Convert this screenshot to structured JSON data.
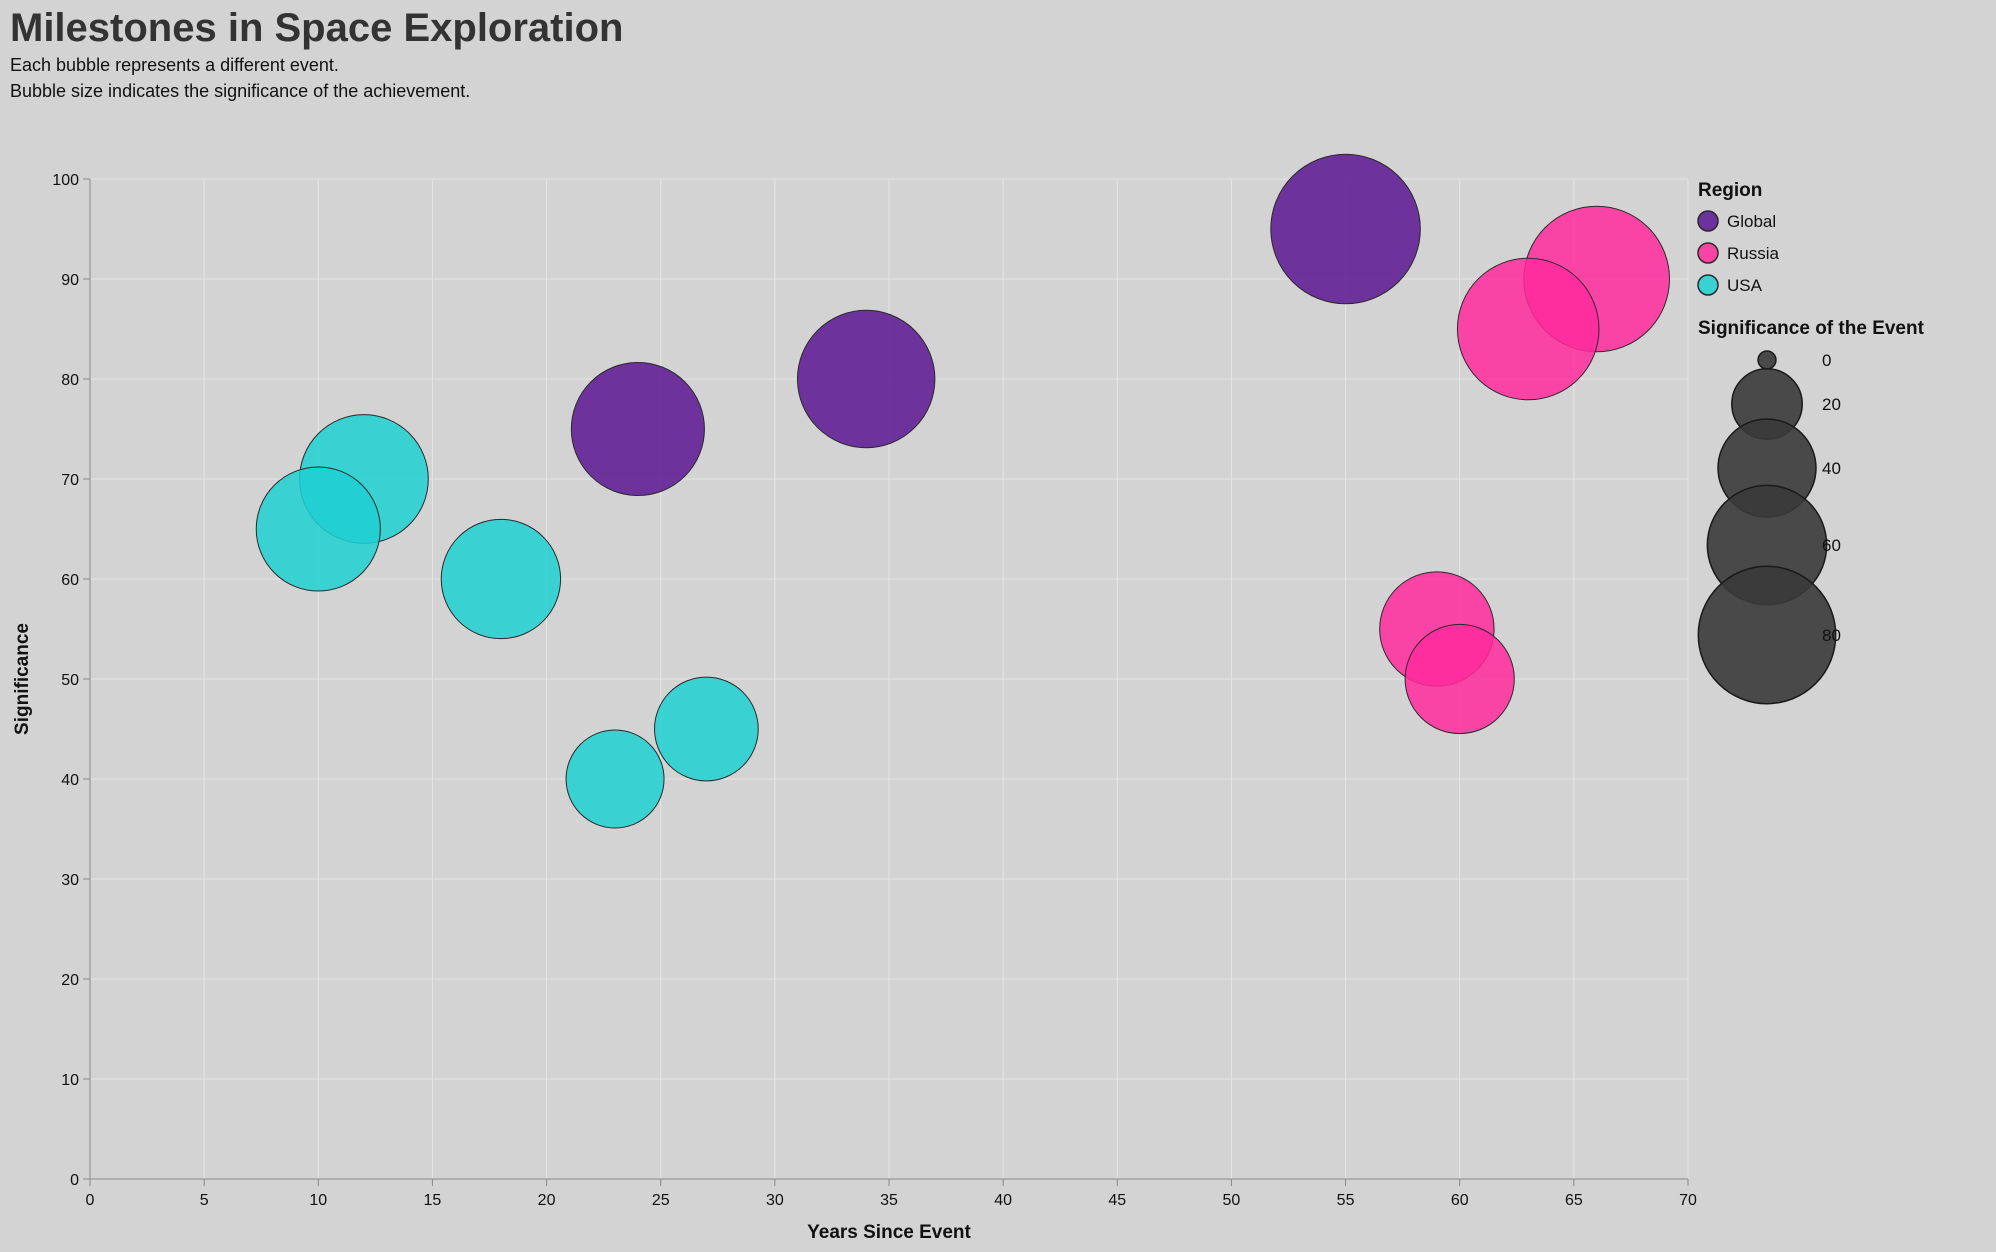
{
  "chart_data": {
    "type": "scatter",
    "title": "Milestones in Space Exploration",
    "subtitle": [
      "Each bubble represents a different event.",
      "Bubble size indicates the significance of the achievement."
    ],
    "xlabel": "Years Since Event",
    "ylabel": "Significance",
    "xlim": [
      0,
      70
    ],
    "ylim": [
      0,
      100
    ],
    "x_ticks": [
      0,
      5,
      10,
      15,
      20,
      25,
      30,
      35,
      40,
      45,
      50,
      55,
      60,
      65,
      70
    ],
    "y_ticks": [
      0,
      10,
      20,
      30,
      40,
      50,
      60,
      70,
      80,
      90,
      100
    ],
    "grid": true,
    "color_legend": {
      "title": "Region",
      "placement": "right",
      "entries": [
        {
          "name": "Global",
          "color": "#5a1591"
        },
        {
          "name": "Russia",
          "color": "#ff2a9e"
        },
        {
          "name": "USA",
          "color": "#1ed0d2"
        }
      ]
    },
    "size_legend": {
      "title": "Significance of the Event",
      "values": [
        0,
        20,
        40,
        60,
        80
      ]
    },
    "points": [
      {
        "x": 55,
        "y": 95,
        "size": 95,
        "region": "Global"
      },
      {
        "x": 34,
        "y": 80,
        "size": 80,
        "region": "Global"
      },
      {
        "x": 24,
        "y": 75,
        "size": 75,
        "region": "Global"
      },
      {
        "x": 66,
        "y": 90,
        "size": 90,
        "region": "Russia"
      },
      {
        "x": 63,
        "y": 85,
        "size": 85,
        "region": "Russia"
      },
      {
        "x": 59,
        "y": 55,
        "size": 55,
        "region": "Russia"
      },
      {
        "x": 60,
        "y": 50,
        "size": 50,
        "region": "Russia"
      },
      {
        "x": 12,
        "y": 70,
        "size": 70,
        "region": "USA"
      },
      {
        "x": 10,
        "y": 65,
        "size": 65,
        "region": "USA"
      },
      {
        "x": 18,
        "y": 60,
        "size": 60,
        "region": "USA"
      },
      {
        "x": 27,
        "y": 45,
        "size": 45,
        "region": "USA"
      },
      {
        "x": 23,
        "y": 40,
        "size": 40,
        "region": "USA"
      }
    ]
  }
}
